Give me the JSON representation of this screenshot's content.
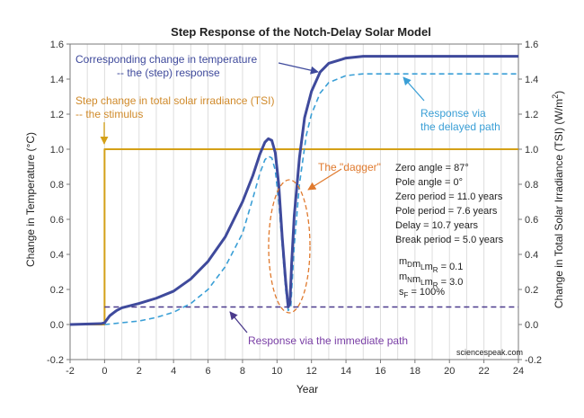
{
  "chart_data": {
    "type": "line",
    "title": "Step Response of the Notch-Delay Solar Model",
    "xlabel": "Year",
    "ylabel_left": "Change in Temperature (°C)",
    "ylabel_right": "Change in Total Solar Irradiance (TSI) (W/m²)",
    "xlim": [
      -2,
      24
    ],
    "ylim_left": [
      -0.2,
      1.6
    ],
    "ylim_right": [
      -0.2,
      1.6
    ],
    "x_ticks": [
      "-2",
      "0",
      "2",
      "4",
      "6",
      "8",
      "10",
      "12",
      "14",
      "16",
      "18",
      "20",
      "22",
      "24"
    ],
    "y_ticks_left": [
      "-0.2",
      "0.0",
      "0.2",
      "0.4",
      "0.6",
      "0.8",
      "1.0",
      "1.2",
      "1.4",
      "1.6"
    ],
    "y_ticks_right": [
      "-0.2",
      "0.0",
      "0.2",
      "0.4",
      "0.6",
      "0.8",
      "1.0",
      "1.2",
      "1.4",
      "1.6"
    ],
    "grid": "vertical",
    "series": [
      {
        "name": "Step change in total solar irradiance (TSI) -- the stimulus",
        "color": "#d4a017",
        "style": "solid",
        "points": [
          [
            -2,
            0.0
          ],
          [
            0,
            0.0
          ],
          [
            0,
            1.0
          ],
          [
            24,
            1.0
          ]
        ]
      },
      {
        "name": "Corresponding change in temperature -- the (step) response",
        "color": "#3f4a9c",
        "style": "solid",
        "points": [
          [
            -2,
            0.0
          ],
          [
            -0.2,
            0.005
          ],
          [
            0,
            0.01
          ],
          [
            0.3,
            0.05
          ],
          [
            0.7,
            0.08
          ],
          [
            1,
            0.095
          ],
          [
            2,
            0.12
          ],
          [
            3,
            0.15
          ],
          [
            4,
            0.19
          ],
          [
            5,
            0.26
          ],
          [
            6,
            0.36
          ],
          [
            7,
            0.5
          ],
          [
            8,
            0.7
          ],
          [
            8.6,
            0.85
          ],
          [
            9,
            0.97
          ],
          [
            9.3,
            1.04
          ],
          [
            9.5,
            1.06
          ],
          [
            9.7,
            1.05
          ],
          [
            9.9,
            0.98
          ],
          [
            10.1,
            0.8
          ],
          [
            10.3,
            0.5
          ],
          [
            10.5,
            0.25
          ],
          [
            10.65,
            0.1
          ],
          [
            10.75,
            0.12
          ],
          [
            10.85,
            0.35
          ],
          [
            11,
            0.62
          ],
          [
            11.3,
            0.95
          ],
          [
            11.6,
            1.18
          ],
          [
            12,
            1.33
          ],
          [
            12.5,
            1.44
          ],
          [
            13,
            1.49
          ],
          [
            14,
            1.52
          ],
          [
            15,
            1.53
          ],
          [
            16,
            1.53
          ],
          [
            24,
            1.53
          ]
        ]
      },
      {
        "name": "Response via the delayed path",
        "color": "#3a9fd6",
        "style": "dashed",
        "points": [
          [
            0,
            0.0
          ],
          [
            1,
            0.01
          ],
          [
            2,
            0.02
          ],
          [
            3,
            0.04
          ],
          [
            4,
            0.07
          ],
          [
            5,
            0.12
          ],
          [
            6,
            0.2
          ],
          [
            7,
            0.33
          ],
          [
            8,
            0.52
          ],
          [
            8.6,
            0.72
          ],
          [
            9,
            0.86
          ],
          [
            9.3,
            0.94
          ],
          [
            9.5,
            0.96
          ],
          [
            9.7,
            0.95
          ],
          [
            9.9,
            0.88
          ],
          [
            10.1,
            0.7
          ],
          [
            10.3,
            0.45
          ],
          [
            10.5,
            0.2
          ],
          [
            10.65,
            0.08
          ],
          [
            10.8,
            0.1
          ],
          [
            11,
            0.45
          ],
          [
            11.3,
            0.8
          ],
          [
            11.7,
            1.08
          ],
          [
            12,
            1.2
          ],
          [
            12.5,
            1.32
          ],
          [
            13,
            1.38
          ],
          [
            14,
            1.42
          ],
          [
            15,
            1.43
          ],
          [
            24,
            1.43
          ]
        ]
      },
      {
        "name": "Response via the immediate path",
        "color": "#4b3a8c",
        "style": "dashed",
        "points": [
          [
            0,
            0.1
          ],
          [
            24,
            0.1
          ]
        ]
      }
    ],
    "annotations": {
      "response_label": [
        "Corresponding change in temperature",
        "-- the (step) response"
      ],
      "stimulus_label": [
        "Step change in total solar irradiance (TSI)",
        "-- the stimulus"
      ],
      "delayed_label": [
        "Response via",
        "the delayed path"
      ],
      "immediate_label": "Response via the immediate path",
      "dagger_label": "The \"dagger\"",
      "params": [
        "Zero angle = 87°",
        "Pole angle = 0°",
        "Zero period = 11.0 years",
        "Pole period = 7.6 years",
        "Delay = 10.7 years",
        "Break period = 5.0 years"
      ],
      "mult_1": {
        "base": "m",
        "parts": [
          [
            "D",
            "m"
          ],
          [
            "L",
            "m"
          ],
          [
            "R",
            " = 0.1"
          ]
        ]
      },
      "mult_2": {
        "base": "m",
        "parts": [
          [
            "N",
            "m"
          ],
          [
            "L",
            "m"
          ],
          [
            "R",
            " = 3.0"
          ]
        ]
      },
      "sf": {
        "base": "s",
        "sub": "F",
        "rest": " = 100%"
      },
      "credit": "sciencespeak.com"
    },
    "colors": {
      "stimulus": "#d4a017",
      "stimulus_text": "#d08a2a",
      "response": "#3f4a9c",
      "response_text": "#3f4a9c",
      "delayed": "#3a9fd6",
      "immediate": "#4b3a8c",
      "immediate_text": "#7a3fa6",
      "dagger": "#e07a2e",
      "grid": "#dddddd"
    }
  }
}
